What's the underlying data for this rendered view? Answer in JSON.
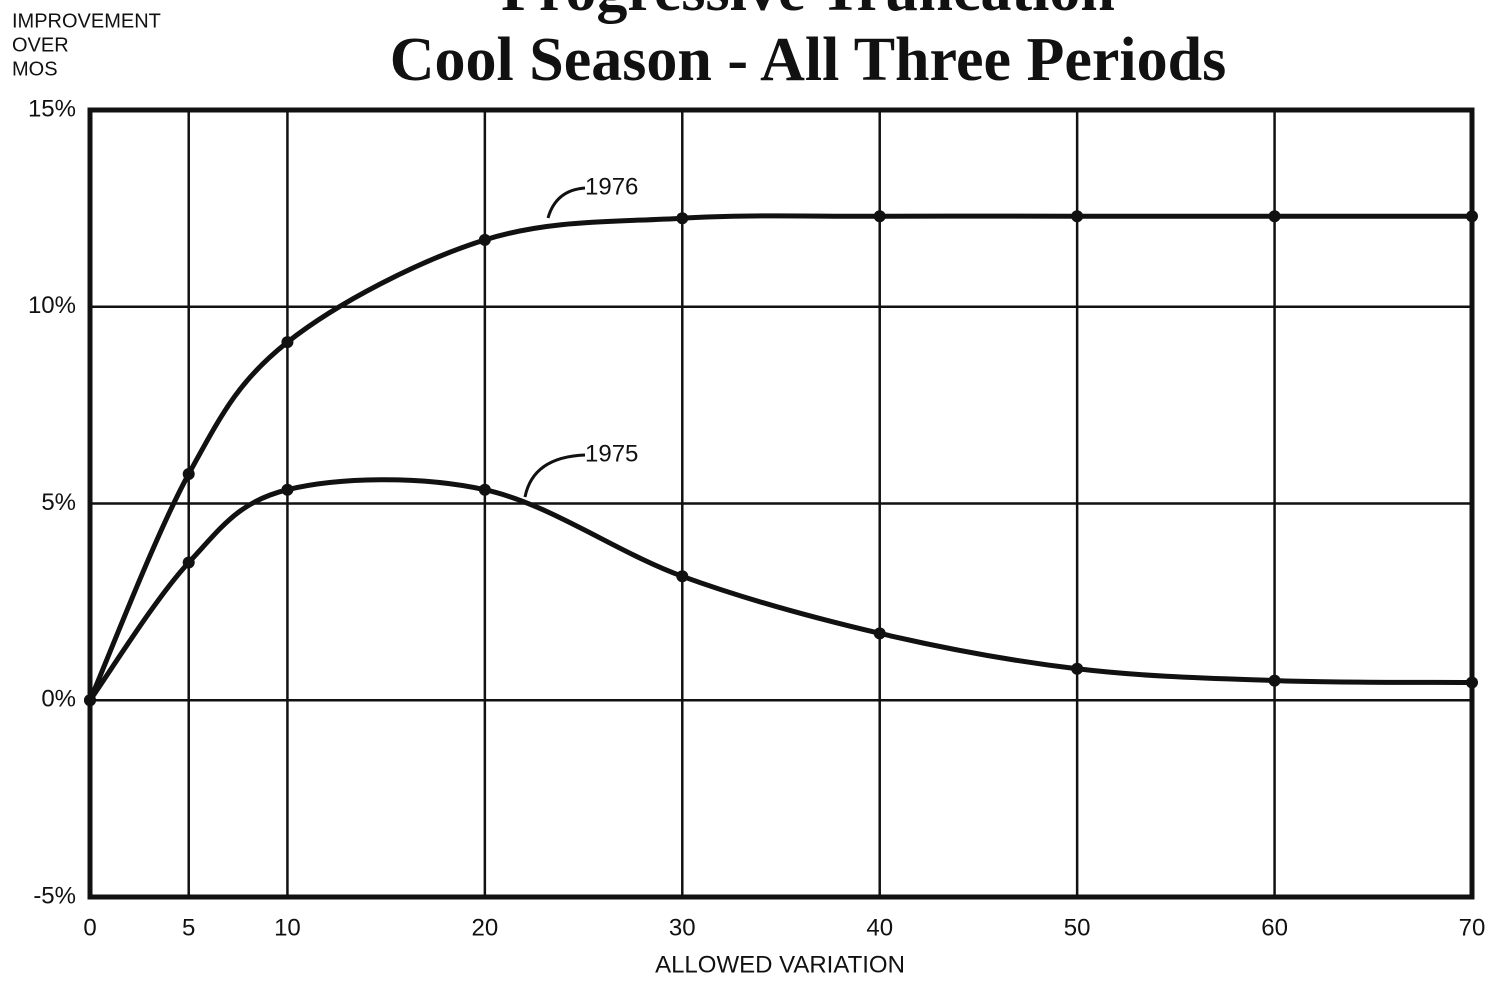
{
  "chart_data": {
    "type": "line",
    "title": "Progressive Truncation",
    "subtitle": "Cool Season - All Three Periods",
    "ylabel": [
      "IMPROVEMENT",
      "OVER",
      "MOS"
    ],
    "xlabel": "ALLOWED VARIATION",
    "x": [
      0,
      5,
      10,
      20,
      30,
      40,
      50,
      60,
      70
    ],
    "series": [
      {
        "name": "1976",
        "color": "#111111",
        "values": [
          0,
          5.75,
          9.1,
          11.7,
          12.25,
          12.3,
          12.3,
          12.3,
          12.3
        ]
      },
      {
        "name": "1975",
        "color": "#111111",
        "values": [
          0,
          3.5,
          5.35,
          5.35,
          3.15,
          1.7,
          0.8,
          0.5,
          0.45
        ]
      }
    ],
    "xlim": [
      0,
      70
    ],
    "xticks": [
      0,
      5,
      10,
      20,
      30,
      40,
      50,
      60,
      70
    ],
    "ylim": [
      -5,
      15
    ],
    "yticks": [
      {
        "value": -5,
        "label": "-5%"
      },
      {
        "value": 0,
        "label": "0%"
      },
      {
        "value": 5,
        "label": "5%"
      },
      {
        "value": 10,
        "label": "10%"
      },
      {
        "value": 15,
        "label": "15%"
      }
    ],
    "grid": true
  }
}
